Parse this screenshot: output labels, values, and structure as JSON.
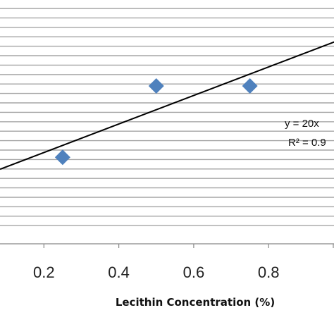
{
  "chart_data": {
    "type": "scatter",
    "title": "",
    "xlabel": "Lecithin Concentration (%)",
    "ylabel": "",
    "xlim": [
      0.0,
      1.0
    ],
    "x_ticks": [
      0.2,
      0.4,
      0.6,
      0.8
    ],
    "x_tick_labels": [
      "0.2",
      "0.4",
      "0.6",
      "0.8"
    ],
    "grid": "horizontal",
    "marker": "diamond",
    "colors": {
      "marker": "#4f81bd",
      "trendline": "#000000",
      "grid": "#a6a6a6",
      "axis": "#888888"
    },
    "series": [
      {
        "x": [
          0.25,
          0.5,
          0.75
        ],
        "y": [
          7.5,
          12.0,
          12.0
        ]
      }
    ],
    "trendline": {
      "type": "linear",
      "equation_label": "y = 20x",
      "r2_label": "R² = 0.9"
    }
  }
}
